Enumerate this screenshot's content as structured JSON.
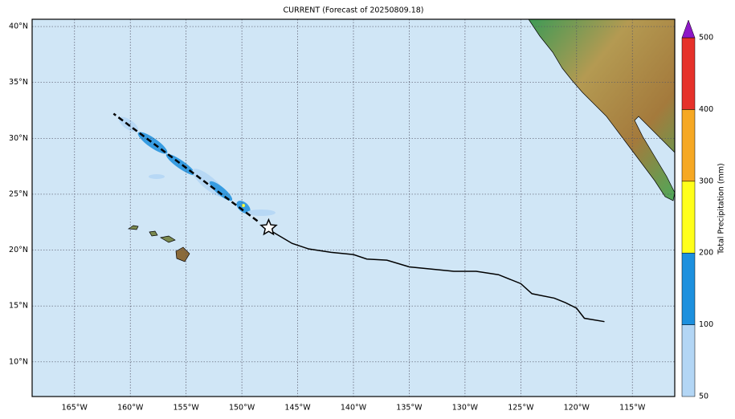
{
  "chart_data": {
    "type": "map",
    "title": "CURRENT (Forecast of 20250809.18)",
    "xlim": [
      -168.8,
      -111.2
    ],
    "ylim": [
      6.9,
      40.65
    ],
    "xticks": [
      {
        "value": -165,
        "label": "165°W"
      },
      {
        "value": -160,
        "label": "160°W"
      },
      {
        "value": -155,
        "label": "155°W"
      },
      {
        "value": -150,
        "label": "150°W"
      },
      {
        "value": -145,
        "label": "145°W"
      },
      {
        "value": -140,
        "label": "140°W"
      },
      {
        "value": -135,
        "label": "135°W"
      },
      {
        "value": -130,
        "label": "130°W"
      },
      {
        "value": -125,
        "label": "125°W"
      },
      {
        "value": -120,
        "label": "120°W"
      },
      {
        "value": -115,
        "label": "115°W"
      }
    ],
    "yticks": [
      {
        "value": 10,
        "label": "10°N"
      },
      {
        "value": 15,
        "label": "15°N"
      },
      {
        "value": 20,
        "label": "20°N"
      },
      {
        "value": 25,
        "label": "25°N"
      },
      {
        "value": 30,
        "label": "30°N"
      },
      {
        "value": 35,
        "label": "35°N"
      },
      {
        "value": 40,
        "label": "40°N"
      }
    ],
    "grid": true,
    "track": {
      "color": "#000000",
      "lon": [
        -147.7,
        -145.5,
        -144,
        -142,
        -140,
        -138.8,
        -137,
        -135,
        -133,
        -131,
        -129,
        -127,
        -125,
        -124,
        -122,
        -121,
        -120,
        -119.3,
        -117.5
      ],
      "lat": [
        21.9,
        20.6,
        20.1,
        19.8,
        19.6,
        19.2,
        19.1,
        18.5,
        18.3,
        18.1,
        18.1,
        17.8,
        17.0,
        16.1,
        15.7,
        15.3,
        14.8,
        13.9,
        13.6
      ]
    },
    "forecast_track": {
      "color": "#000000",
      "lon": [
        -148.6,
        -161.5
      ],
      "lat": [
        22.6,
        32.2
      ]
    },
    "star": {
      "lon": -147.6,
      "lat": 22.0
    },
    "colorbar": {
      "label": "Total Precipitation (mm)",
      "levels": [
        50,
        100,
        200,
        300,
        400,
        500
      ],
      "colors": [
        "#b3d6f5",
        "#1d90de",
        "#ffff1a",
        "#f6a823",
        "#e6312a"
      ],
      "extend_color": "#8d17c6"
    }
  }
}
